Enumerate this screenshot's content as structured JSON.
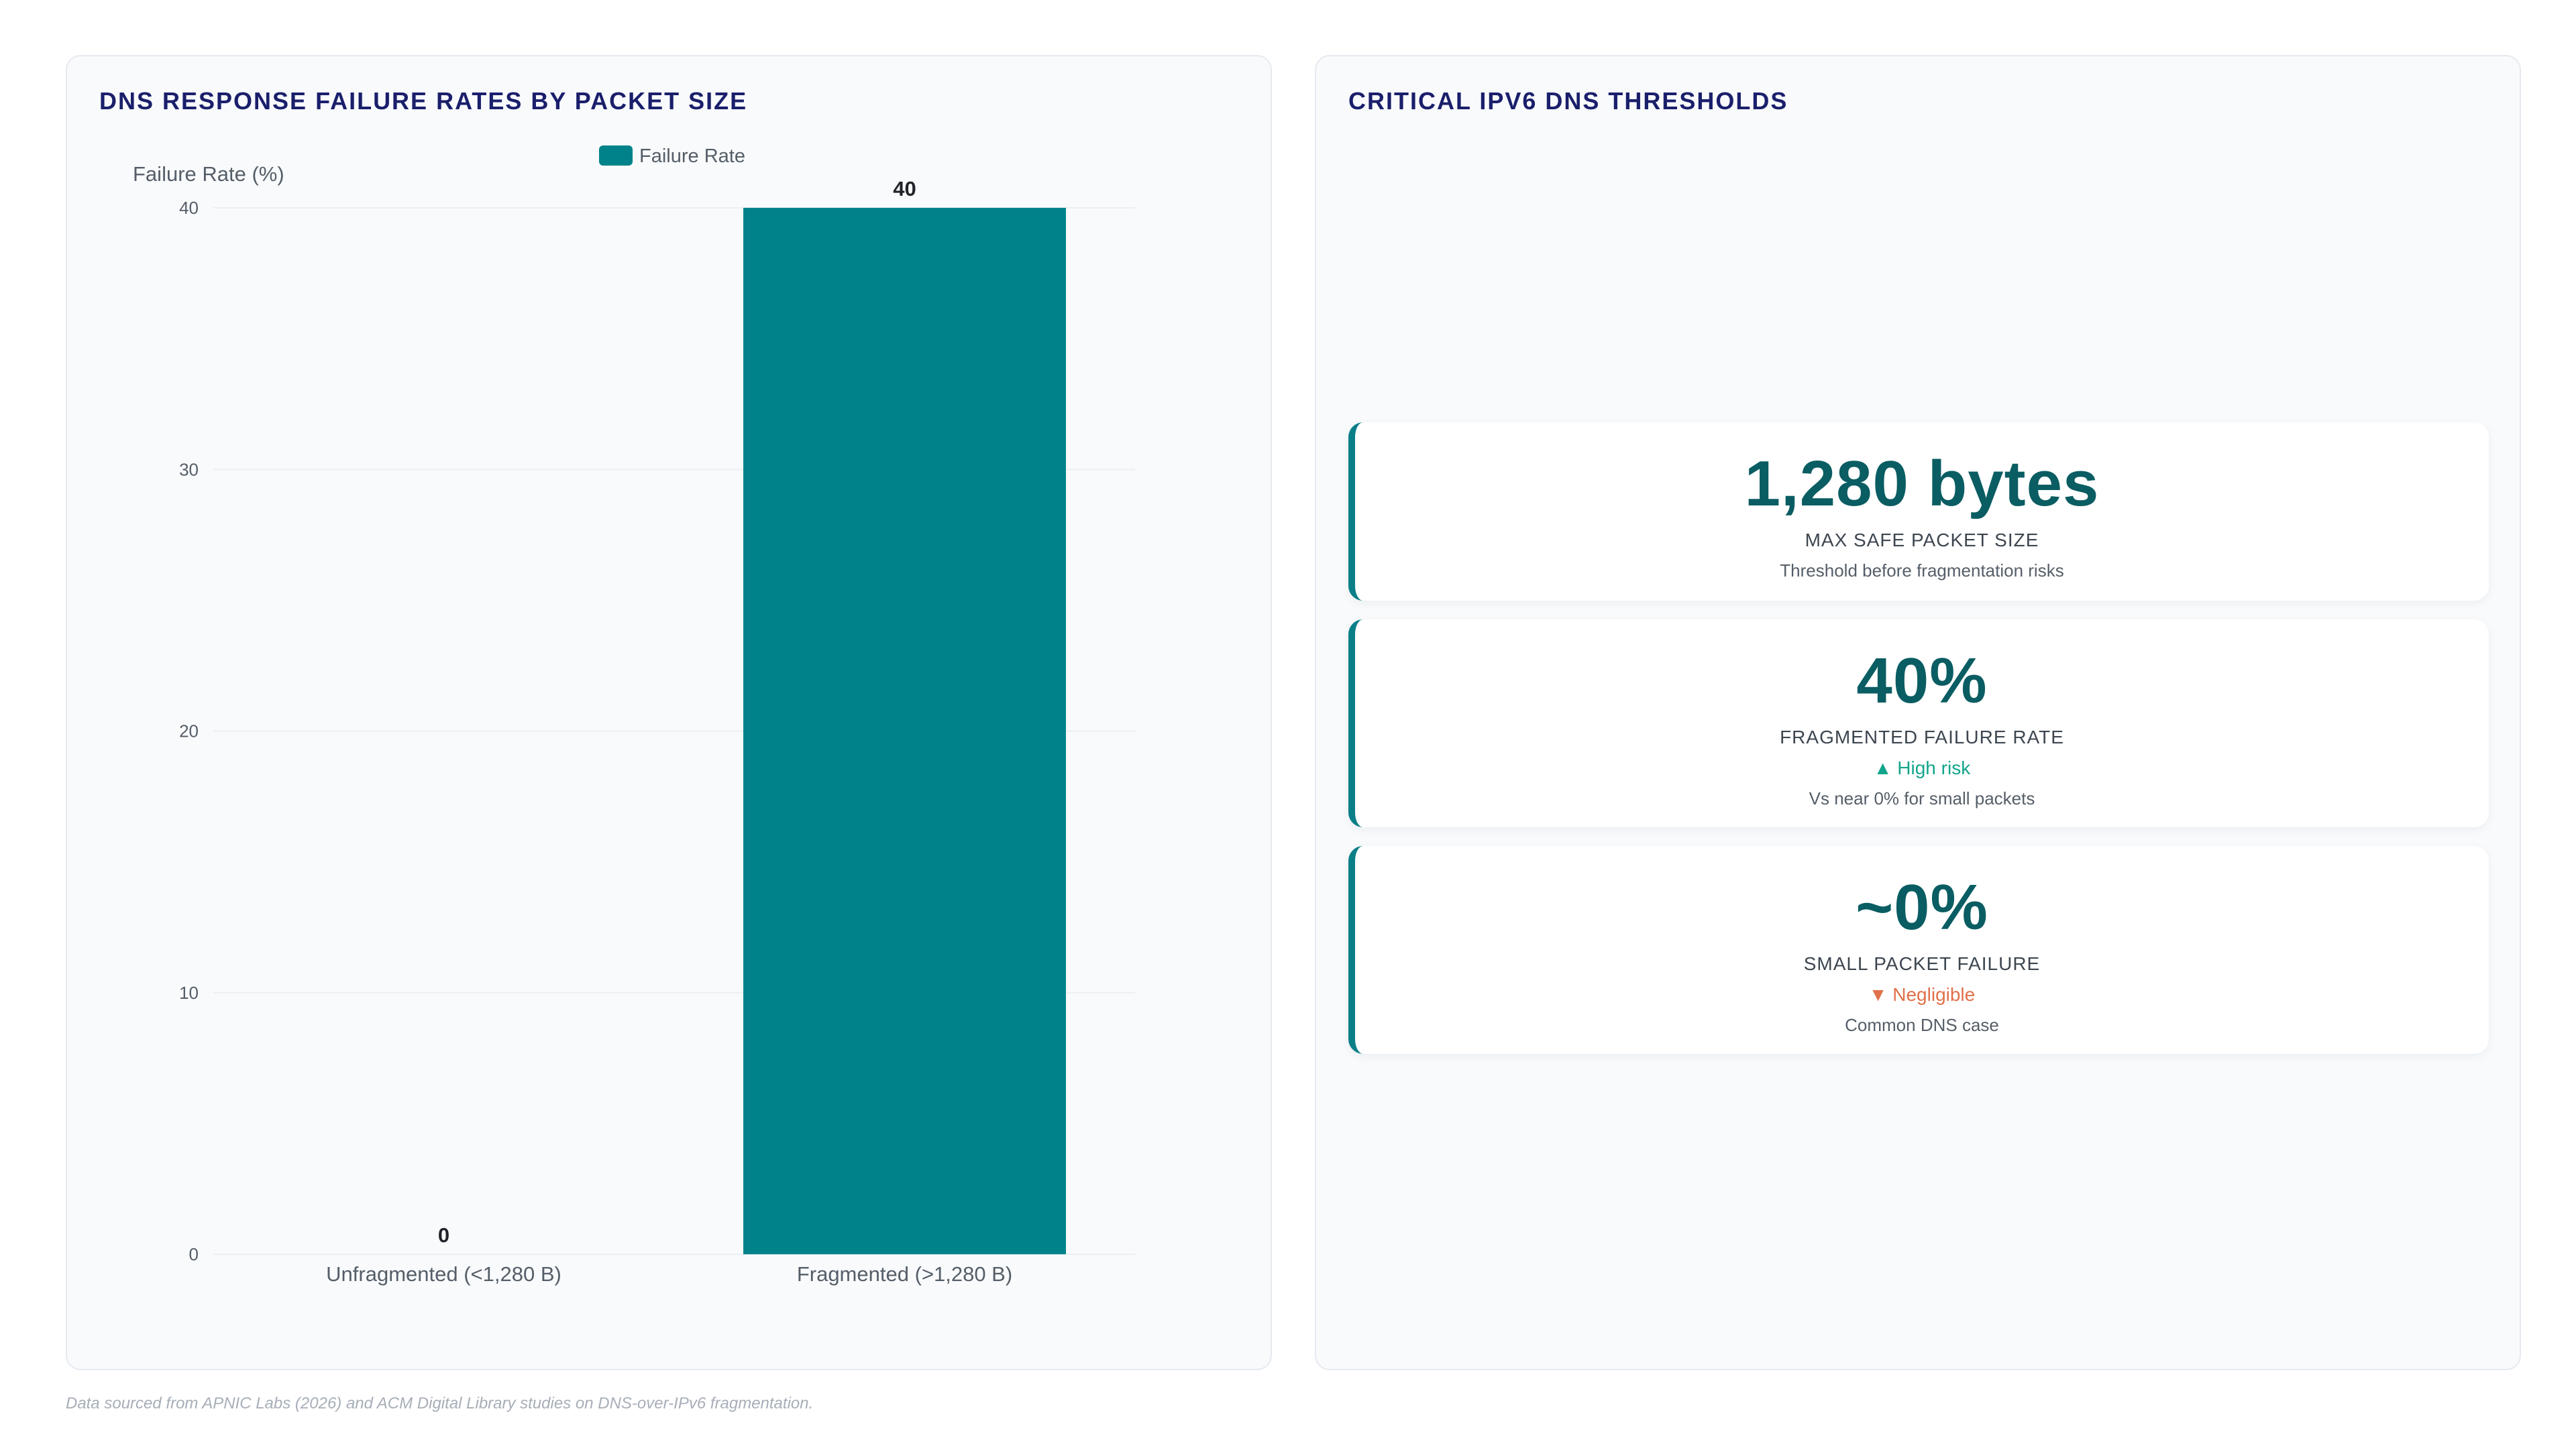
{
  "left_panel": {
    "title": "DNS RESPONSE FAILURE RATES BY PACKET SIZE"
  },
  "right_panel": {
    "title": "CRITICAL IPV6 DNS THRESHOLDS"
  },
  "chart_data": {
    "type": "bar",
    "categories": [
      "Unfragmented (<1,280 B)",
      "Fragmented (>1,280 B)"
    ],
    "series": [
      {
        "name": "Failure Rate",
        "values": [
          0,
          40
        ],
        "color": "#00828a"
      }
    ],
    "ylabel": "Failure Rate (%)",
    "xlabel": "",
    "ylim": [
      0,
      40
    ],
    "yticks": [
      0,
      10,
      20,
      30,
      40
    ],
    "data_labels": [
      "0",
      "40"
    ],
    "legend_position": "top-center",
    "grid": true
  },
  "stats": [
    {
      "value": "1,280 bytes",
      "label": "MAX SAFE PACKET SIZE",
      "trend": "",
      "trend_direction": "",
      "note": "Threshold before fragmentation risks"
    },
    {
      "value": "40%",
      "label": "FRAGMENTED FAILURE RATE",
      "trend": "▲ High risk",
      "trend_direction": "up",
      "note": "Vs near 0% for small packets"
    },
    {
      "value": "~0%",
      "label": "SMALL PACKET FAILURE",
      "trend": "▼ Negligible",
      "trend_direction": "down",
      "note": "Common DNS case"
    }
  ],
  "footnote": "Data sourced from APNIC Labs (2026) and ACM Digital Library studies on DNS-over-IPv6 fragmentation."
}
